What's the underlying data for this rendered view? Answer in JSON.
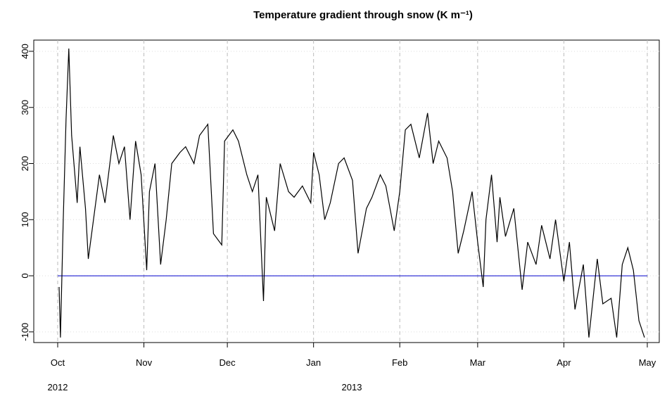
{
  "chart_data": {
    "type": "line",
    "title": "Temperature gradient through snow (K m⁻¹)",
    "x": [
      0.5,
      1,
      2,
      3,
      4,
      5,
      7,
      8,
      10,
      11,
      15,
      17,
      20,
      22,
      24,
      26,
      28,
      30,
      32,
      33,
      35,
      37,
      39,
      41,
      44,
      46,
      49,
      51,
      54,
      56,
      59,
      60,
      63,
      65,
      68,
      70,
      72,
      74,
      75,
      78,
      80,
      83,
      85,
      88,
      91,
      92,
      94,
      96,
      98,
      101,
      103,
      106,
      108,
      111,
      113,
      116,
      118,
      121,
      123,
      125,
      127,
      130,
      133,
      135,
      137,
      140,
      142,
      144,
      146,
      149,
      151,
      153,
      154,
      156,
      158,
      159,
      161,
      164,
      167,
      169,
      172,
      174,
      177,
      179,
      182,
      184,
      186,
      189,
      191,
      194,
      196,
      199,
      201,
      203,
      205,
      207,
      209,
      211
    ],
    "series": [
      {
        "color": "#000000",
        "values": [
          -20,
          -110,
          100,
          280,
          405,
          250,
          130,
          230,
          120,
          30,
          180,
          130,
          250,
          200,
          230,
          100,
          240,
          180,
          10,
          150,
          200,
          20,
          100,
          200,
          220,
          230,
          200,
          250,
          270,
          75,
          55,
          240,
          260,
          240,
          180,
          150,
          180,
          -45,
          140,
          80,
          200,
          150,
          140,
          160,
          130,
          220,
          180,
          100,
          130,
          200,
          210,
          170,
          40,
          120,
          140,
          180,
          160,
          80,
          150,
          260,
          270,
          210,
          290,
          200,
          240,
          210,
          150,
          40,
          80,
          150,
          60,
          -20,
          100,
          180,
          60,
          140,
          70,
          120,
          -25,
          60,
          20,
          90,
          30,
          100,
          -10,
          60,
          -60,
          20,
          -110,
          30,
          -50,
          -40,
          -110,
          20,
          50,
          10,
          -80,
          -110
        ]
      }
    ],
    "hline": {
      "value": 0,
      "color": "#0000cc"
    },
    "xlim": [
      -8.6,
      216.3
    ],
    "xticks": [
      {
        "value": 0,
        "label": "Oct"
      },
      {
        "value": 31,
        "label": "Nov"
      },
      {
        "value": 61,
        "label": "Dec"
      },
      {
        "value": 92,
        "label": "Jan"
      },
      {
        "value": 123,
        "label": "Feb"
      },
      {
        "value": 151,
        "label": "Mar"
      },
      {
        "value": 182,
        "label": "Apr"
      },
      {
        "value": 212,
        "label": "May"
      }
    ],
    "year_labels": [
      "2012",
      "2013"
    ],
    "ylim": [
      -119,
      420
    ],
    "yticks": [
      -100,
      0,
      100,
      200,
      300,
      400
    ],
    "grid": true
  }
}
